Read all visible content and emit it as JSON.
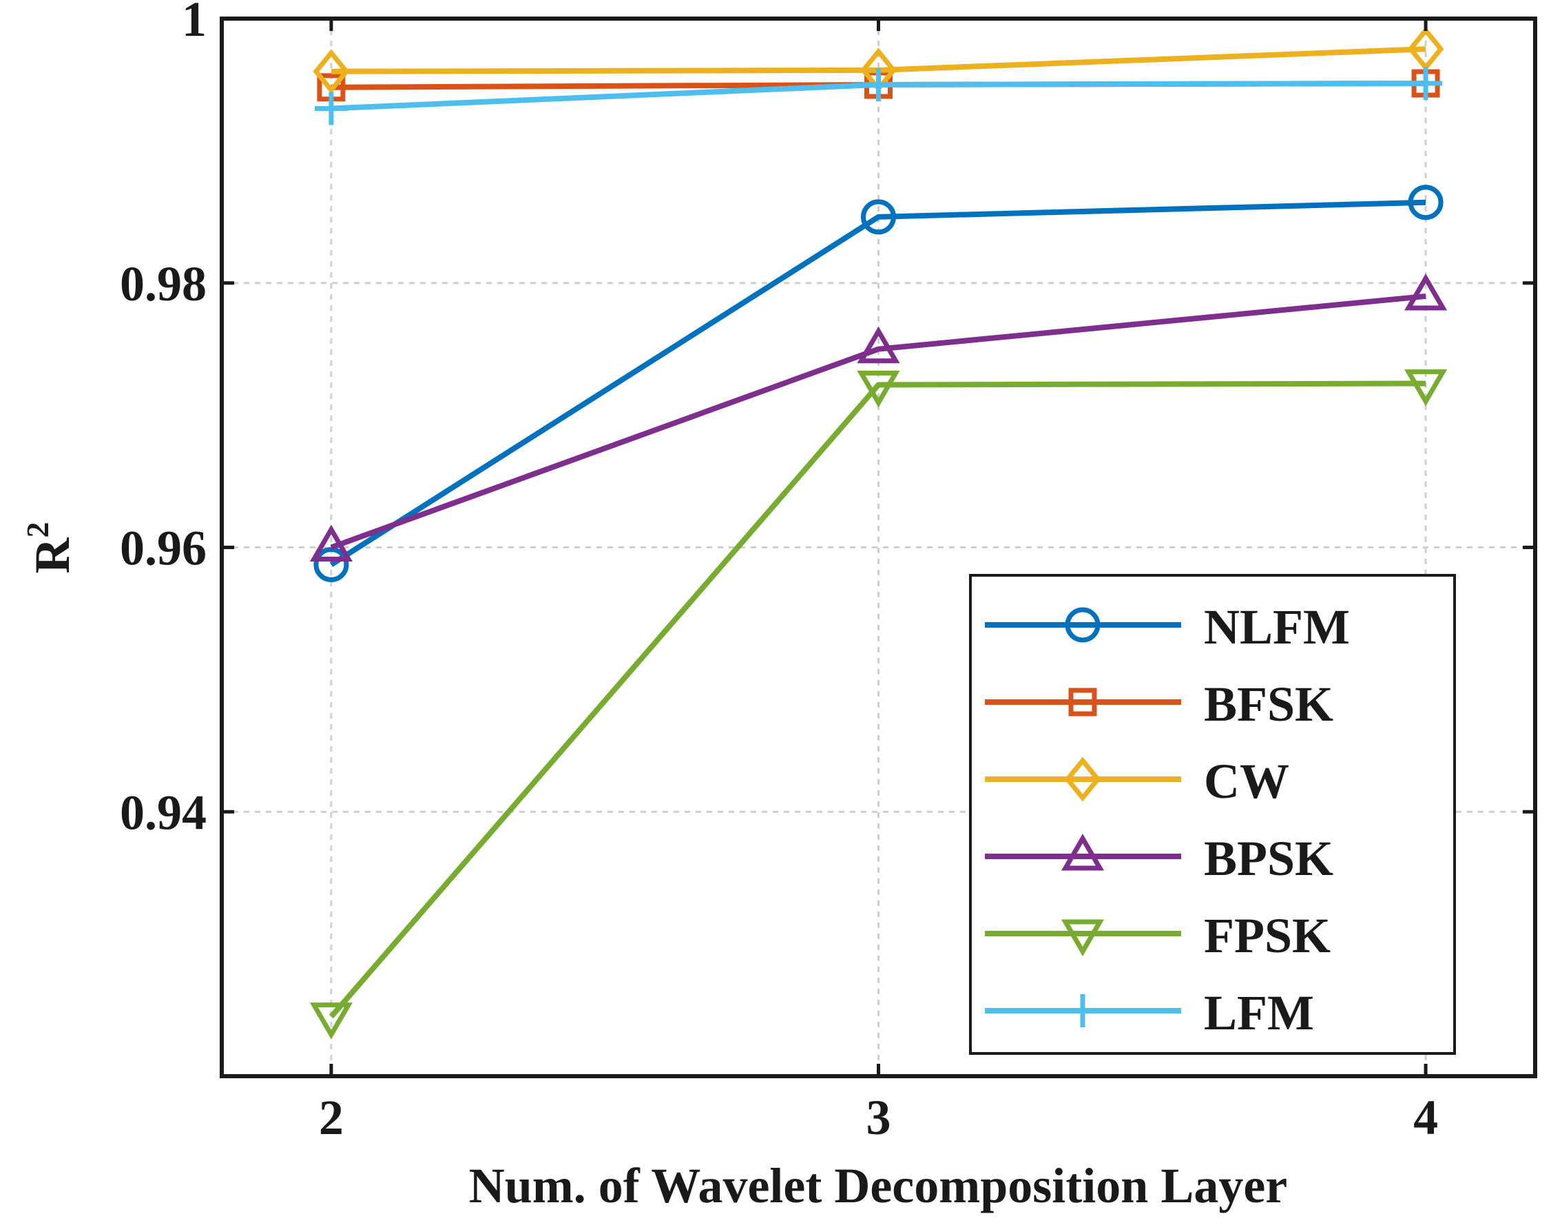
{
  "chart_data": {
    "type": "line",
    "title": "",
    "xlabel": "Num. of Wavelet Decomposition Layer",
    "ylabel": "R",
    "ylabel_superscript": "2",
    "x": [
      2,
      3,
      4
    ],
    "xlim": [
      1.8,
      4.2
    ],
    "ylim": [
      0.92,
      1.0
    ],
    "xticks": [
      "2",
      "3",
      "4"
    ],
    "yticks": [
      {
        "value": 0.94,
        "label": "0.94"
      },
      {
        "value": 0.96,
        "label": "0.96"
      },
      {
        "value": 0.98,
        "label": "0.98"
      },
      {
        "value": 1.0,
        "label": "1"
      }
    ],
    "grid": true,
    "legend_position": "bottom-right",
    "series": [
      {
        "name": "NLFM",
        "color": "#0072BD",
        "marker": "circle",
        "values": [
          0.9587,
          0.985,
          0.9861
        ]
      },
      {
        "name": "BFSK",
        "color": "#D95319",
        "marker": "square",
        "values": [
          0.9948,
          0.995,
          0.9951
        ]
      },
      {
        "name": "CW",
        "color": "#EDB120",
        "marker": "diamond",
        "values": [
          0.996,
          0.9961,
          0.9977
        ]
      },
      {
        "name": "BPSK",
        "color": "#7E2F8E",
        "marker": "triangle-up",
        "values": [
          0.96,
          0.975,
          0.979
        ]
      },
      {
        "name": "FPSK",
        "color": "#77AC30",
        "marker": "triangle-down",
        "values": [
          0.9245,
          0.9723,
          0.9724
        ]
      },
      {
        "name": "LFM",
        "color": "#4DBEEE",
        "marker": "plus",
        "values": [
          0.9932,
          0.995,
          0.9951
        ]
      }
    ]
  }
}
